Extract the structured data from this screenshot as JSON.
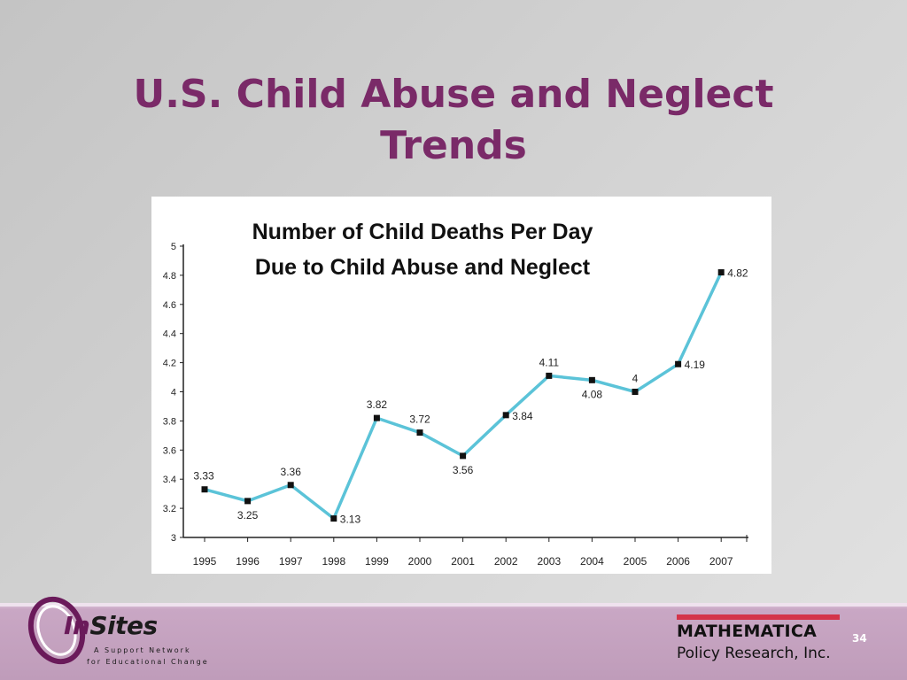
{
  "slide": {
    "title_line1": "U.S. Child Abuse and Neglect",
    "title_line2": "Trends",
    "page_number": "34"
  },
  "logos": {
    "insites_name_prefix": "In",
    "insites_name_suffix": "Sites",
    "insites_tagline_line1": "A Support Network",
    "insites_tagline_line2": "for Educational Change",
    "mathematica_name": "MATHEMATICA",
    "mathematica_sub": "Policy Research, Inc."
  },
  "colors": {
    "title": "#7a2a68",
    "line": "#5bc3d8",
    "marker": "#111111",
    "mathematica_bar": "#d4344a"
  },
  "chart_data": {
    "type": "line",
    "title_line1": "Number of Child Deaths Per Day",
    "title_line2": "Due to Child Abuse and Neglect",
    "x": [
      "1995",
      "1996",
      "1997",
      "1998",
      "1999",
      "2000",
      "2001",
      "2002",
      "2003",
      "2004",
      "2005",
      "2006",
      "2007"
    ],
    "values": [
      3.33,
      3.25,
      3.36,
      3.13,
      3.82,
      3.72,
      3.56,
      3.84,
      4.11,
      4.08,
      4.0,
      4.19,
      4.82
    ],
    "labels": [
      "3.33",
      "3.25",
      "3.36",
      "3.13",
      "3.82",
      "3.72",
      "3.56",
      "3.84",
      "4.11",
      "4.08",
      "4",
      "4.19",
      "4.82"
    ],
    "label_positions": [
      "above",
      "below",
      "above",
      "right",
      "above",
      "above",
      "below",
      "right",
      "above",
      "below",
      "above",
      "right",
      "right"
    ],
    "yticks": [
      "3",
      "3.2",
      "3.4",
      "3.6",
      "3.8",
      "4",
      "4.2",
      "4.4",
      "4.6",
      "4.8",
      "5"
    ],
    "ylim": [
      3,
      5
    ],
    "grid": false,
    "legend": "none"
  }
}
